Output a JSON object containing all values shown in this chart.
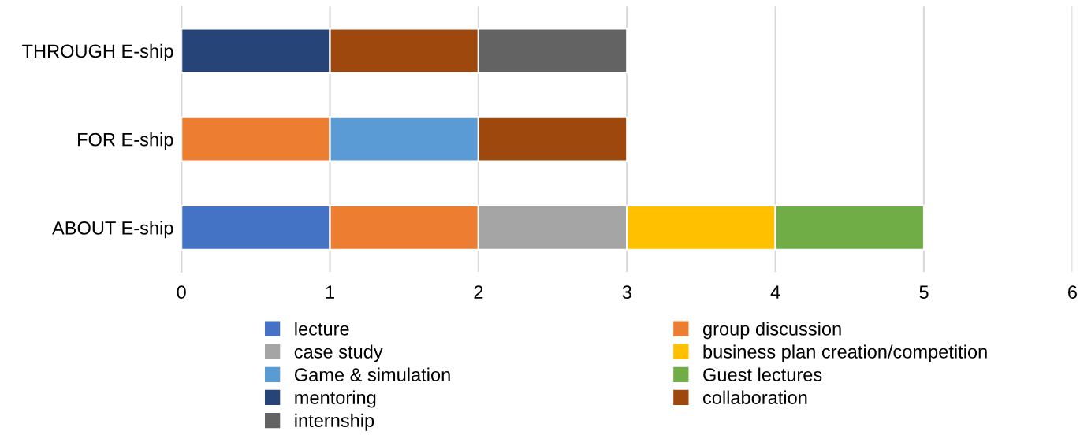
{
  "chart_data": {
    "type": "bar",
    "orientation": "horizontal",
    "stacked": true,
    "categories": [
      "THROUGH E-ship",
      "FOR E-ship",
      "ABOUT E-ship"
    ],
    "series": [
      {
        "name": "lecture",
        "color": "#4472c4",
        "values": [
          null,
          null,
          1
        ]
      },
      {
        "name": "group discussion",
        "color": "#ed7d31",
        "values": [
          null,
          1,
          1
        ]
      },
      {
        "name": "case study",
        "color": "#a5a5a5",
        "values": [
          null,
          null,
          1
        ]
      },
      {
        "name": "business plan creation/competition",
        "color": "#ffc000",
        "values": [
          null,
          null,
          1
        ]
      },
      {
        "name": "Game & simulation",
        "color": "#5b9bd5",
        "values": [
          null,
          1,
          null
        ]
      },
      {
        "name": "Guest lectures",
        "color": "#70ad47",
        "values": [
          null,
          null,
          1
        ]
      },
      {
        "name": "mentoring",
        "color": "#264478",
        "values": [
          1,
          null,
          null
        ]
      },
      {
        "name": "collaboration",
        "color": "#9e480e",
        "values": [
          1,
          1,
          null
        ]
      },
      {
        "name": "internship",
        "color": "#636363",
        "values": [
          1,
          null,
          null
        ]
      }
    ],
    "xlim": [
      0,
      6
    ],
    "xticks": [
      0,
      1,
      2,
      3,
      4,
      5,
      6
    ],
    "grid": "x",
    "legend": "bottom"
  }
}
